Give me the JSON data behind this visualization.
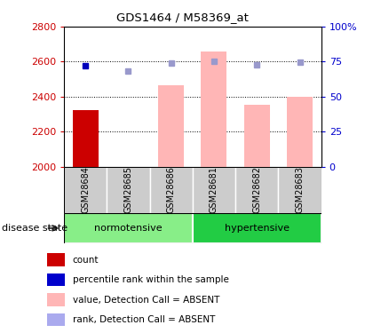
{
  "title": "GDS1464 / M58369_at",
  "categories": [
    "GSM28684",
    "GSM28685",
    "GSM28686",
    "GSM28681",
    "GSM28682",
    "GSM28683"
  ],
  "groups": [
    {
      "label": "normotensive",
      "indices": [
        0,
        1,
        2
      ],
      "color": "#88ee88"
    },
    {
      "label": "hypertensive",
      "indices": [
        3,
        4,
        5
      ],
      "color": "#22cc44"
    }
  ],
  "ylim_left": [
    2000,
    2800
  ],
  "ylim_right": [
    0,
    100
  ],
  "yticks_left": [
    2000,
    2200,
    2400,
    2600,
    2800
  ],
  "yticks_right": [
    0,
    25,
    50,
    75,
    100
  ],
  "ytick_labels_right": [
    "0",
    "25",
    "50",
    "75",
    "100%"
  ],
  "bar_values": [
    2325,
    0,
    2465,
    2660,
    2355,
    2400
  ],
  "bar_colors": [
    "#cc0000",
    null,
    "#ffb6b6",
    "#ffb6b6",
    "#ffb6b6",
    "#ffb6b6"
  ],
  "dark_blue_squares": {
    "0": 2575
  },
  "lavender_squares": {
    "1": 2545,
    "3": 2600,
    "4": 2580
  },
  "mid_blue_squares": {
    "2": 2590,
    "5": 2595
  },
  "disease_state_label": "disease state",
  "legend_items": [
    {
      "color": "#cc0000",
      "label": "count",
      "marker": "s"
    },
    {
      "color": "#0000cc",
      "label": "percentile rank within the sample",
      "marker": "s"
    },
    {
      "color": "#ffb6b6",
      "label": "value, Detection Call = ABSENT",
      "marker": "s"
    },
    {
      "color": "#aaaaee",
      "label": "rank, Detection Call = ABSENT",
      "marker": "s"
    }
  ],
  "left_tick_color": "#cc0000",
  "right_tick_color": "#0000cc",
  "group_bg": "#cccccc",
  "plot_border_color": "#000000"
}
